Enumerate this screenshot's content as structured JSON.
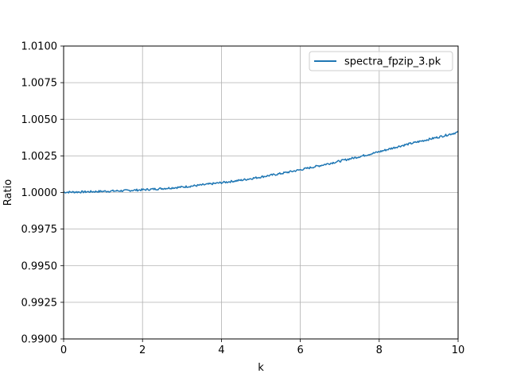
{
  "chart_data": {
    "type": "line",
    "title": "",
    "xlabel": "k",
    "ylabel": "Ratio",
    "xlim": [
      0,
      10
    ],
    "ylim": [
      0.99,
      1.01
    ],
    "xticks": [
      0,
      2,
      4,
      6,
      8,
      10
    ],
    "xtick_labels": [
      "0",
      "2",
      "4",
      "6",
      "8",
      "10"
    ],
    "yticks": [
      0.99,
      0.9925,
      0.995,
      0.9975,
      1.0,
      1.0025,
      1.005,
      1.0075,
      1.01
    ],
    "ytick_labels": [
      "0.9900",
      "0.9925",
      "0.9950",
      "0.9975",
      "1.0000",
      "1.0025",
      "1.0050",
      "1.0075",
      "1.0100"
    ],
    "grid": true,
    "legend": {
      "placement": "top-right"
    },
    "series": [
      {
        "name": "spectra_fpzip_3.pk",
        "color": "#1f77b4",
        "x": [
          0,
          0.5,
          1,
          1.5,
          2,
          2.5,
          3,
          3.5,
          4,
          4.5,
          5,
          5.5,
          6,
          6.5,
          7,
          7.5,
          8,
          8.5,
          9,
          9.5,
          10
        ],
        "y": [
          1.00002,
          1.00004,
          1.00008,
          1.00012,
          1.00018,
          1.00027,
          1.00037,
          1.00051,
          1.00067,
          1.00084,
          1.00106,
          1.00129,
          1.00155,
          1.00184,
          1.00214,
          1.00245,
          1.00278,
          1.00315,
          1.00347,
          1.00378,
          1.00412
        ]
      }
    ]
  }
}
